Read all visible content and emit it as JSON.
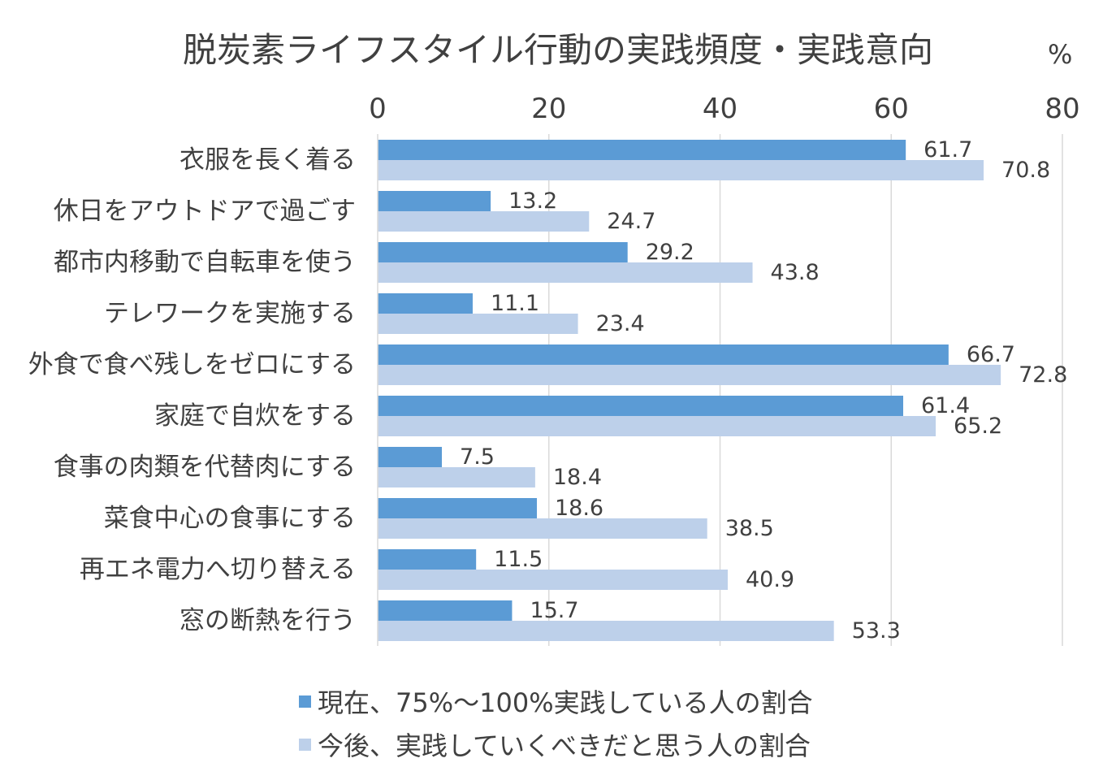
{
  "chart_data": {
    "type": "bar",
    "orientation": "horizontal",
    "title": "脱炭素ライフスタイル行動の実践頻度・実践意向",
    "unit": "%",
    "xlim": [
      0,
      80
    ],
    "xticks": [
      "0",
      "20",
      "40",
      "60",
      "80"
    ],
    "grid": true,
    "legend_position": "bottom",
    "categories": [
      "衣服を長く着る",
      "休日をアウトドアで過ごす",
      "都市内移動で自転車を使う",
      "テレワークを実施する",
      "外食で食べ残しをゼロにする",
      "家庭で自炊をする",
      "食事の肉類を代替肉にする",
      "菜食中心の食事にする",
      "再エネ電力へ切り替える",
      "窓の断熱を行う"
    ],
    "series": [
      {
        "name": "現在、75%～100%実践している人の割合",
        "color": "#5b9bd5",
        "values": [
          61.7,
          13.2,
          29.2,
          11.1,
          66.7,
          61.4,
          7.5,
          18.6,
          11.5,
          15.7
        ]
      },
      {
        "name": "今後、実践していくべきだと思う人の割合",
        "color": "#bdd0ea",
        "values": [
          70.8,
          24.7,
          43.8,
          23.4,
          72.8,
          65.2,
          18.4,
          38.5,
          40.9,
          53.3
        ]
      }
    ]
  }
}
